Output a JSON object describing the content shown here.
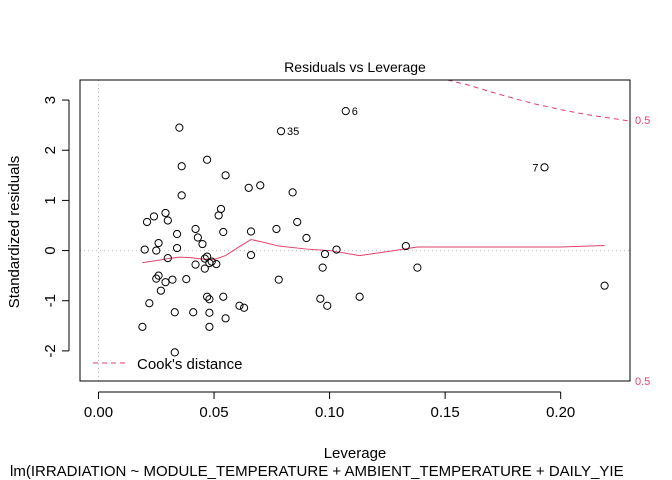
{
  "chart_data": {
    "type": "scatter",
    "title": "Residuals vs Leverage",
    "xlabel": "Leverage",
    "ylabel": "Standardized residuals",
    "subtitle": "lm(IRRADIATION ~ MODULE_TEMPERATURE + AMBIENT_TEMPERATURE + DAILY_YIE",
    "xlim": [
      -0.008,
      0.23
    ],
    "ylim": [
      -2.6,
      3.4
    ],
    "xticks": [
      0.0,
      0.05,
      0.1,
      0.15,
      0.2
    ],
    "xtick_labels": [
      "0.00",
      "0.05",
      "0.10",
      "0.15",
      "0.20"
    ],
    "yticks": [
      -2,
      -1,
      0,
      1,
      2,
      3
    ],
    "ytick_labels": [
      "-2",
      "-1",
      "0",
      "1",
      "2",
      "3"
    ],
    "grid": false,
    "legend": {
      "position": "bottom-left",
      "entries": [
        {
          "label": "Cook's distance",
          "style": "dashed",
          "color": "#e0426a"
        }
      ]
    },
    "right_labels": [
      {
        "text": "0.5",
        "y": 2.6
      },
      {
        "text": "0.5",
        "y": -2.6
      }
    ],
    "colors": {
      "smoother": "#e0426a",
      "cook": "#e0426a",
      "points": "#000000",
      "reference": "#bbbbbb"
    },
    "points": [
      {
        "x": 0.035,
        "y": 2.45
      },
      {
        "x": 0.036,
        "y": 1.68
      },
      {
        "x": 0.047,
        "y": 1.81
      },
      {
        "x": 0.055,
        "y": 1.5
      },
      {
        "x": 0.036,
        "y": 1.1
      },
      {
        "x": 0.065,
        "y": 1.25
      },
      {
        "x": 0.07,
        "y": 1.3
      },
      {
        "x": 0.084,
        "y": 1.16
      },
      {
        "x": 0.053,
        "y": 0.83
      },
      {
        "x": 0.052,
        "y": 0.7
      },
      {
        "x": 0.021,
        "y": 0.57
      },
      {
        "x": 0.024,
        "y": 0.68
      },
      {
        "x": 0.029,
        "y": 0.75
      },
      {
        "x": 0.03,
        "y": 0.6
      },
      {
        "x": 0.086,
        "y": 0.57
      },
      {
        "x": 0.042,
        "y": 0.43
      },
      {
        "x": 0.054,
        "y": 0.37
      },
      {
        "x": 0.066,
        "y": 0.38
      },
      {
        "x": 0.077,
        "y": 0.43
      },
      {
        "x": 0.09,
        "y": 0.25
      },
      {
        "x": 0.043,
        "y": 0.26
      },
      {
        "x": 0.045,
        "y": 0.13
      },
      {
        "x": 0.034,
        "y": 0.33
      },
      {
        "x": 0.026,
        "y": 0.15
      },
      {
        "x": 0.02,
        "y": 0.02
      },
      {
        "x": 0.025,
        "y": 0.0
      },
      {
        "x": 0.034,
        "y": 0.05
      },
      {
        "x": 0.046,
        "y": -0.16
      },
      {
        "x": 0.047,
        "y": -0.12
      },
      {
        "x": 0.049,
        "y": -0.22
      },
      {
        "x": 0.048,
        "y": -0.25
      },
      {
        "x": 0.051,
        "y": -0.27
      },
      {
        "x": 0.03,
        "y": -0.15
      },
      {
        "x": 0.042,
        "y": -0.28
      },
      {
        "x": 0.046,
        "y": -0.36
      },
      {
        "x": 0.066,
        "y": -0.09
      },
      {
        "x": 0.098,
        "y": -0.07
      },
      {
        "x": 0.103,
        "y": 0.02
      },
      {
        "x": 0.097,
        "y": -0.34
      },
      {
        "x": 0.025,
        "y": -0.56
      },
      {
        "x": 0.026,
        "y": -0.5
      },
      {
        "x": 0.027,
        "y": -0.8
      },
      {
        "x": 0.029,
        "y": -0.63
      },
      {
        "x": 0.032,
        "y": -0.58
      },
      {
        "x": 0.038,
        "y": -0.57
      },
      {
        "x": 0.078,
        "y": -0.58
      },
      {
        "x": 0.047,
        "y": -0.92
      },
      {
        "x": 0.048,
        "y": -0.97
      },
      {
        "x": 0.054,
        "y": -0.92
      },
      {
        "x": 0.061,
        "y": -1.1
      },
      {
        "x": 0.063,
        "y": -1.14
      },
      {
        "x": 0.022,
        "y": -1.05
      },
      {
        "x": 0.033,
        "y": -1.23
      },
      {
        "x": 0.041,
        "y": -1.23
      },
      {
        "x": 0.048,
        "y": -1.24
      },
      {
        "x": 0.055,
        "y": -1.35
      },
      {
        "x": 0.048,
        "y": -1.52
      },
      {
        "x": 0.019,
        "y": -1.52
      },
      {
        "x": 0.096,
        "y": -0.96
      },
      {
        "x": 0.099,
        "y": -1.1
      },
      {
        "x": 0.113,
        "y": -0.92
      },
      {
        "x": 0.133,
        "y": 0.09
      },
      {
        "x": 0.138,
        "y": -0.34
      },
      {
        "x": 0.219,
        "y": -0.7
      },
      {
        "x": 0.033,
        "y": -2.03
      },
      {
        "x": 0.079,
        "y": 2.38,
        "label": "35"
      },
      {
        "x": 0.107,
        "y": 2.78,
        "label": "6"
      },
      {
        "x": 0.193,
        "y": 1.66,
        "label": "7"
      }
    ],
    "smoother": [
      [
        0.019,
        -0.24
      ],
      [
        0.025,
        -0.2
      ],
      [
        0.03,
        -0.16
      ],
      [
        0.035,
        -0.13
      ],
      [
        0.04,
        -0.14
      ],
      [
        0.045,
        -0.17
      ],
      [
        0.05,
        -0.18
      ],
      [
        0.055,
        -0.1
      ],
      [
        0.06,
        0.05
      ],
      [
        0.066,
        0.22
      ],
      [
        0.07,
        0.18
      ],
      [
        0.078,
        0.09
      ],
      [
        0.09,
        0.03
      ],
      [
        0.1,
        0.0
      ],
      [
        0.113,
        -0.1
      ],
      [
        0.125,
        -0.02
      ],
      [
        0.138,
        0.07
      ],
      [
        0.16,
        0.07
      ],
      [
        0.2,
        0.07
      ],
      [
        0.219,
        0.1
      ]
    ],
    "cook_contour": [
      [
        0.151,
        3.4
      ],
      [
        0.16,
        3.3
      ],
      [
        0.17,
        3.16
      ],
      [
        0.18,
        3.03
      ],
      [
        0.19,
        2.91
      ],
      [
        0.2,
        2.81
      ],
      [
        0.21,
        2.72
      ],
      [
        0.22,
        2.65
      ],
      [
        0.23,
        2.58
      ]
    ]
  }
}
